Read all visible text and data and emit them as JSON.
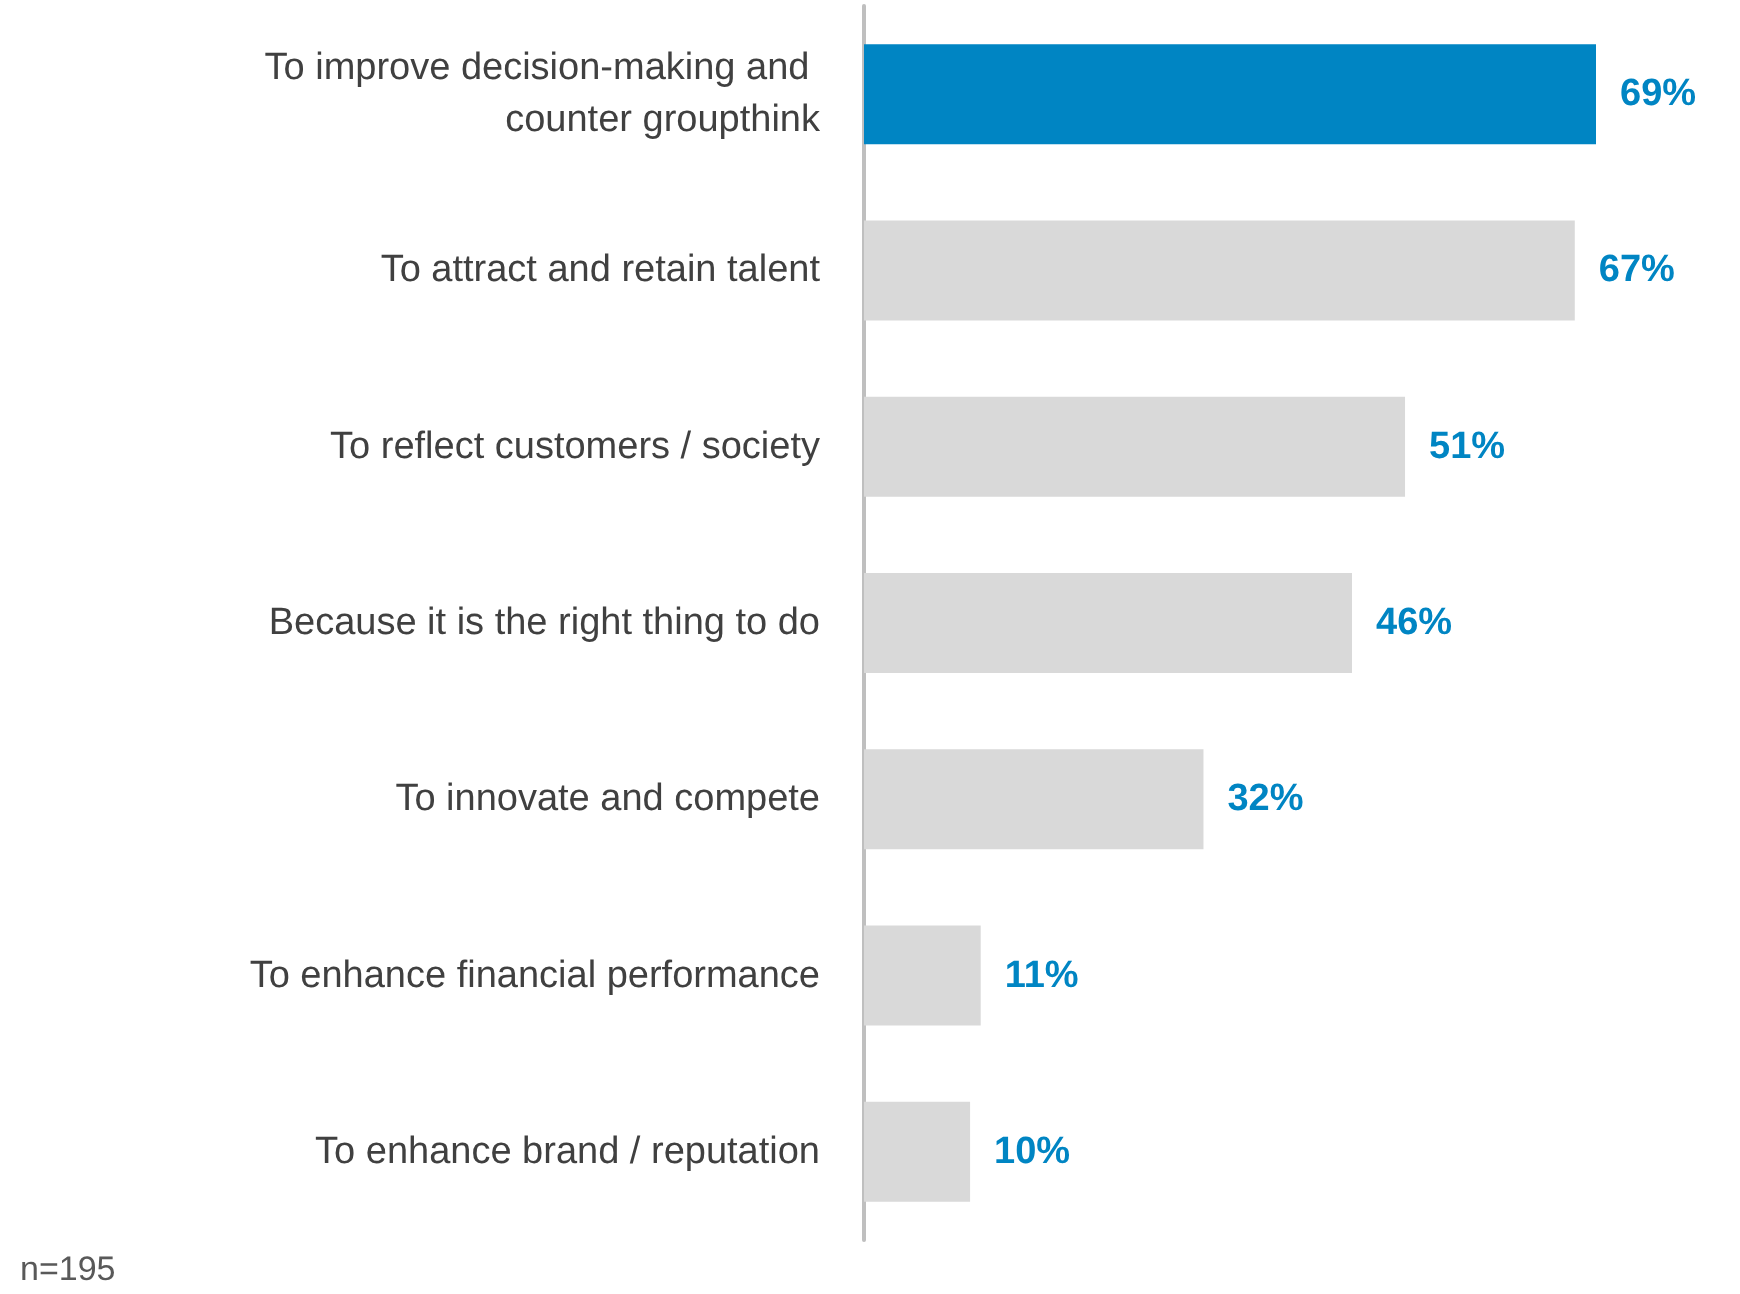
{
  "chart_data": {
    "type": "bar",
    "orientation": "horizontal",
    "categories": [
      "To improve decision-making and counter groupthink",
      "To attract and retain talent",
      "To reflect customers / society",
      "Because it is the right thing to do",
      "To innovate and compete",
      "To enhance financial performance",
      "To enhance brand / reputation"
    ],
    "values": [
      69,
      67,
      51,
      46,
      32,
      11,
      10
    ],
    "colors": [
      "#0085c3",
      "#d9d9d9",
      "#d9d9d9",
      "#d9d9d9",
      "#d9d9d9",
      "#d9d9d9",
      "#d9d9d9"
    ],
    "value_labels": [
      "69%",
      "67%",
      "51%",
      "46%",
      "32%",
      "11%",
      "10%"
    ],
    "annotations": [
      "n=195"
    ]
  }
}
